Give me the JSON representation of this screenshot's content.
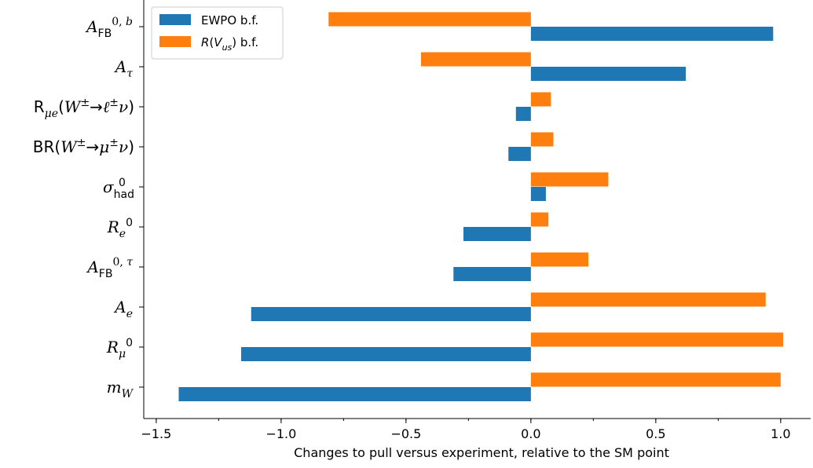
{
  "chart_data": {
    "type": "bar",
    "orientation": "horizontal",
    "categories": [
      "A_FB^{0,b}",
      "A_τ",
      "R_{μe}(W^±→ℓ^±ν)",
      "BR(W^±→μ^±ν)",
      "σ_had^0",
      "R_e^0",
      "A_FB^{0,τ}",
      "A_e",
      "R_μ^0",
      "m_W"
    ],
    "series": [
      {
        "name": "EWPO b.f.",
        "color": "#1f77b4",
        "values": [
          0.97,
          0.62,
          -0.06,
          -0.09,
          0.06,
          -0.27,
          -0.31,
          -1.12,
          -1.16,
          -1.41
        ]
      },
      {
        "name": "R(V_us) b.f.",
        "color": "#ff7f0e",
        "values": [
          -0.81,
          -0.44,
          0.08,
          0.09,
          0.31,
          0.07,
          0.23,
          0.94,
          1.01,
          1.0
        ]
      }
    ],
    "xlabel": "Changes to pull versus experiment, relative to the SM point",
    "ylabel": "",
    "xlim": [
      -1.55,
      1.12
    ],
    "xticks": [
      "−1.5",
      "−1.0",
      "−0.5",
      "0.0",
      "0.5",
      "1.0"
    ],
    "xtick_values": [
      -1.5,
      -1.0,
      -0.5,
      0.0,
      0.5,
      1.0
    ],
    "legend_position": "top-left",
    "grid": false
  }
}
